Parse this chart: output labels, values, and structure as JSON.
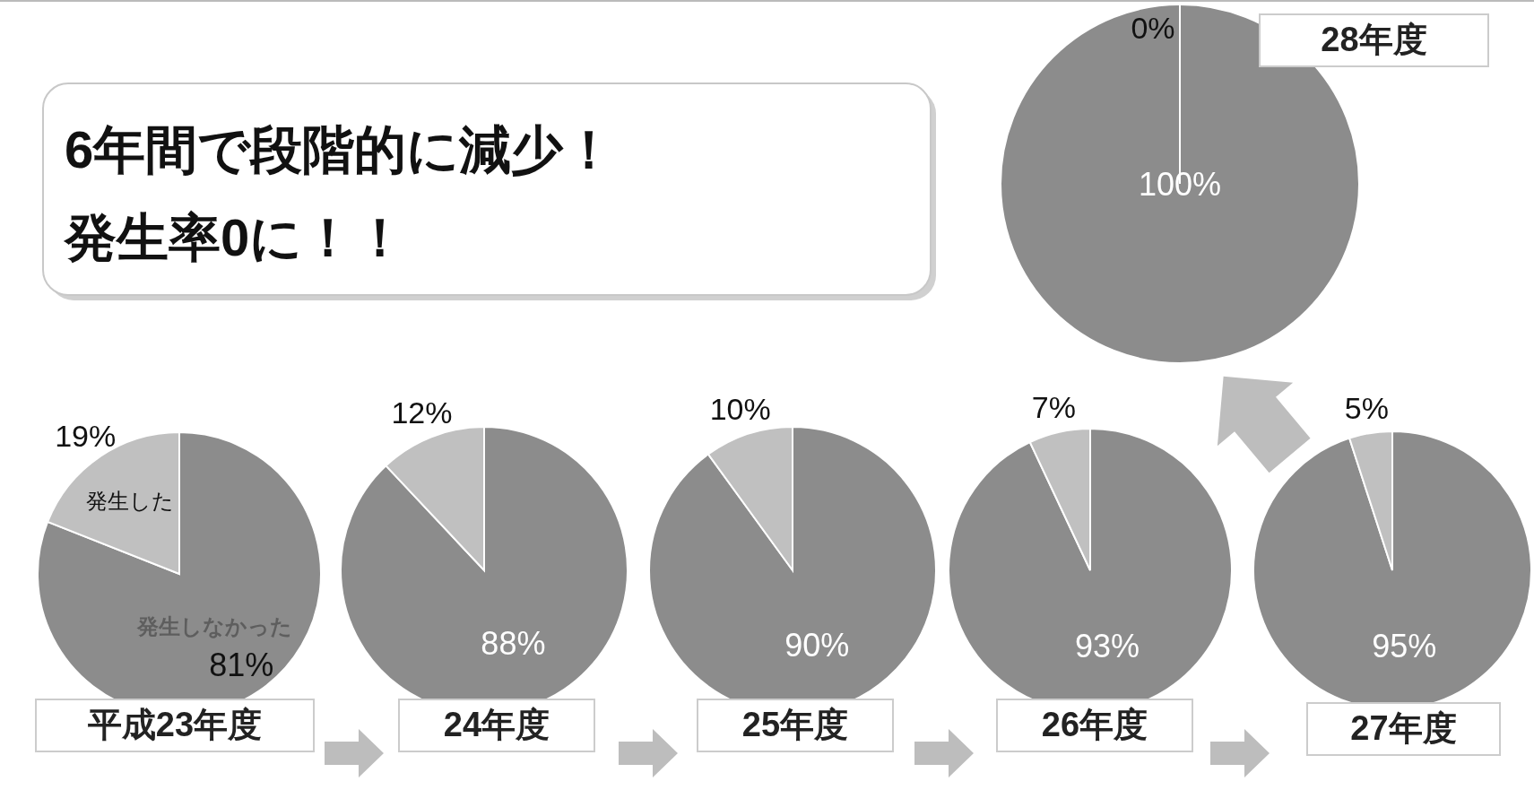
{
  "chart_data": [
    {
      "type": "other",
      "annotations": [
        "6年間で段階的に減少！",
        "発生率0に！！"
      ]
    },
    {
      "type": "pie",
      "title": "平成23年度",
      "categories": [
        "発生しなかった",
        "発生した"
      ],
      "values": [
        81,
        19
      ],
      "colors": [
        "#8c8c8c",
        "#c0c0c0"
      ],
      "value_labels": [
        "81%",
        "19%"
      ]
    },
    {
      "type": "pie",
      "title": "24年度",
      "categories": [
        null,
        null
      ],
      "values": [
        88,
        12
      ],
      "colors": [
        "#8c8c8c",
        "#c0c0c0"
      ],
      "value_labels": [
        "88%",
        "12%"
      ]
    },
    {
      "type": "pie",
      "title": "25年度",
      "categories": [
        null,
        null
      ],
      "values": [
        90,
        10
      ],
      "colors": [
        "#8c8c8c",
        "#c0c0c0"
      ],
      "value_labels": [
        "90%",
        "10%"
      ]
    },
    {
      "type": "pie",
      "title": "26年度",
      "categories": [
        null,
        null
      ],
      "values": [
        93,
        7
      ],
      "colors": [
        "#8c8c8c",
        "#c0c0c0"
      ],
      "value_labels": [
        "93%",
        "7%"
      ]
    },
    {
      "type": "pie",
      "title": "27年度",
      "categories": [
        null,
        null
      ],
      "values": [
        95,
        5
      ],
      "colors": [
        "#8c8c8c",
        "#c0c0c0"
      ],
      "value_labels": [
        "95%",
        "5%"
      ]
    },
    {
      "type": "pie",
      "title": "28年度",
      "categories": [
        null,
        null
      ],
      "values": [
        100,
        0
      ],
      "colors": [
        "#8c8c8c",
        "#c0c0c0"
      ],
      "value_labels": [
        "100%",
        "0%"
      ]
    }
  ]
}
